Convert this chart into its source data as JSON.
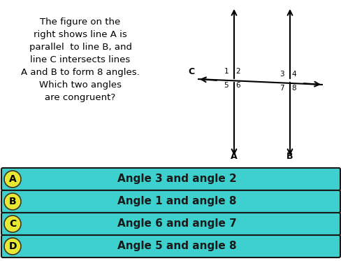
{
  "background_color": "#ffffff",
  "question_text": "The figure on the\nright shows line A is\nparallel  to line B, and\nline C intersects lines\nA and B to form 8 angles.\nWhich two angles\nare congruent?",
  "question_fontsize": 9.5,
  "answer_options": [
    "Angle 3 and angle 2",
    "Angle 1 and angle 8",
    "Angle 6 and angle 7",
    "Angle 5 and angle 8"
  ],
  "answer_labels": [
    "A",
    "B",
    "C",
    "D"
  ],
  "answer_bg_color": "#3ECFCF",
  "answer_text_color": "#1a1a1a",
  "answer_label_bg": "#e8e832",
  "answer_fontsize": 11,
  "answer_label_fontsize": 10,
  "diagram_line_color": "#000000",
  "top_bg_color": "#ffffff"
}
